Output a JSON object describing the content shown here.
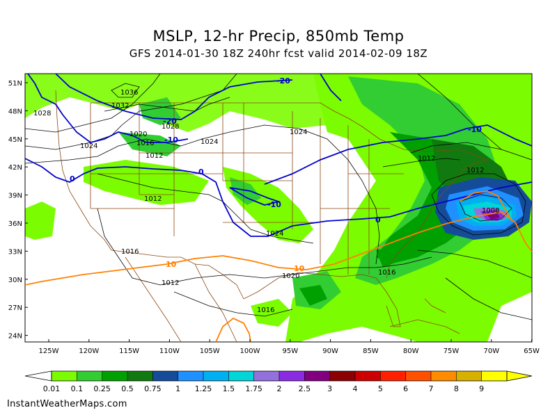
{
  "title": "MSLP, 12-hr Precip, 850mb Temp",
  "subtitle": "GFS 2014-01-30 18Z 240hr fcst valid 2014-02-09 18Z",
  "credit": "InstantWeatherMaps.com",
  "lat_labels": [
    "51N",
    "48N",
    "45N",
    "42N",
    "39N",
    "36N",
    "33N",
    "30N",
    "27N",
    "24N"
  ],
  "lon_labels": [
    "125W",
    "120W",
    "115W",
    "110W",
    "105W",
    "100W",
    "95W",
    "90W",
    "85W",
    "80W",
    "75W",
    "70W",
    "65W"
  ],
  "colorbar": {
    "labels": [
      "0.01",
      "0.1",
      "0.25",
      "0.5",
      "0.75",
      "1",
      "1.25",
      "1.5",
      "1.75",
      "2",
      "2.5",
      "3",
      "4",
      "5",
      "6",
      "7",
      "8",
      "9"
    ],
    "colors": [
      "#7cfc00",
      "#32cd32",
      "#00a000",
      "#107a10",
      "#154c9a",
      "#1e90ff",
      "#00b0f0",
      "#00d5d8",
      "#9370db",
      "#8a2be2",
      "#800080",
      "#8b0000",
      "#cc0000",
      "#ff2000",
      "#ff5000",
      "#ff8c00",
      "#d8b000",
      "#ffff00"
    ]
  },
  "isobar_labels": [
    "1036",
    "1032",
    "1028",
    "1028",
    "1024",
    "1024",
    "1024",
    "1024",
    "1020",
    "1020",
    "1016",
    "1016",
    "1016",
    "1016",
    "1012",
    "1012",
    "1012",
    "1012",
    "1012",
    "1008"
  ],
  "temp_labels": [
    "-20",
    "-20",
    "-10",
    "-10",
    "-10",
    "0",
    "0",
    "0",
    "10",
    "10"
  ],
  "colors": {
    "isobar": "#000000",
    "cold_isotherm": "#0000cc",
    "warm_isotherm": "#ff8000",
    "borders": "#8b4513"
  }
}
